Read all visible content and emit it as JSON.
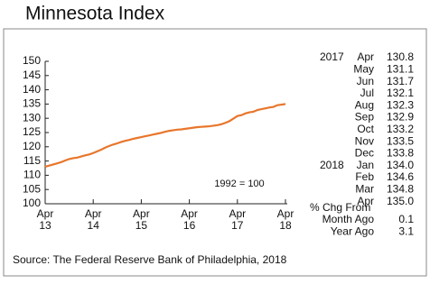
{
  "chart_data": {
    "type": "line",
    "title": "Minnesota Index",
    "annotation": "1992 = 100",
    "source": "Source:  The Federal Reserve Bank of Philadelphia, 2018",
    "color": "#e8762b",
    "categories": [
      [
        "Apr",
        "13"
      ],
      null,
      null,
      null,
      null,
      null,
      null,
      null,
      null,
      null,
      null,
      null,
      [
        "Apr",
        "14"
      ],
      null,
      null,
      null,
      null,
      null,
      null,
      null,
      null,
      null,
      null,
      null,
      [
        "Apr",
        "15"
      ],
      null,
      null,
      null,
      null,
      null,
      null,
      null,
      null,
      null,
      null,
      null,
      [
        "Apr",
        "16"
      ],
      null,
      null,
      null,
      null,
      null,
      null,
      null,
      null,
      null,
      null,
      null,
      [
        "Apr",
        "17"
      ],
      null,
      null,
      null,
      null,
      null,
      null,
      null,
      null,
      null,
      null,
      null,
      [
        "Apr",
        "18"
      ]
    ],
    "values": [
      113.0,
      113.4,
      113.8,
      114.2,
      114.6,
      115.2,
      115.7,
      116.0,
      116.2,
      116.6,
      117.0,
      117.3,
      117.8,
      118.4,
      119.0,
      119.7,
      120.3,
      120.8,
      121.2,
      121.7,
      122.1,
      122.4,
      122.8,
      123.1,
      123.4,
      123.7,
      124.0,
      124.3,
      124.6,
      124.9,
      125.3,
      125.6,
      125.8,
      126.0,
      126.1,
      126.3,
      126.5,
      126.7,
      126.9,
      127.0,
      127.1,
      127.2,
      127.4,
      127.6,
      127.9,
      128.4,
      129.0,
      129.9,
      130.8,
      131.1,
      131.7,
      132.1,
      132.3,
      132.9,
      133.2,
      133.5,
      133.8,
      134.0,
      134.6,
      134.8,
      135.0
    ],
    "ylim": [
      100,
      150
    ],
    "yticks": [
      100,
      105,
      110,
      115,
      120,
      125,
      130,
      135,
      140,
      145,
      150
    ]
  },
  "table": {
    "rows": [
      {
        "year": "2017",
        "month": "Apr",
        "value": "130.8"
      },
      {
        "month": "May",
        "value": "131.1"
      },
      {
        "month": "Jun",
        "value": "131.7"
      },
      {
        "month": "Jul",
        "value": "132.1"
      },
      {
        "month": "Aug",
        "value": "132.3"
      },
      {
        "month": "Sep",
        "value": "132.9"
      },
      {
        "month": "Oct",
        "value": "133.2"
      },
      {
        "month": "Nov",
        "value": "133.5"
      },
      {
        "month": "Dec",
        "value": "133.8"
      },
      {
        "year": "2018",
        "month": "Jan",
        "value": "134.0"
      },
      {
        "month": "Feb",
        "value": "134.6"
      },
      {
        "month": "Mar",
        "value": "134.8"
      },
      {
        "month": "Apr",
        "value": "135.0"
      }
    ],
    "change_header": "% Chg From",
    "changes": [
      {
        "label": "Month Ago",
        "value": "0.1"
      },
      {
        "label": "Year Ago",
        "value": "3.1"
      }
    ]
  }
}
